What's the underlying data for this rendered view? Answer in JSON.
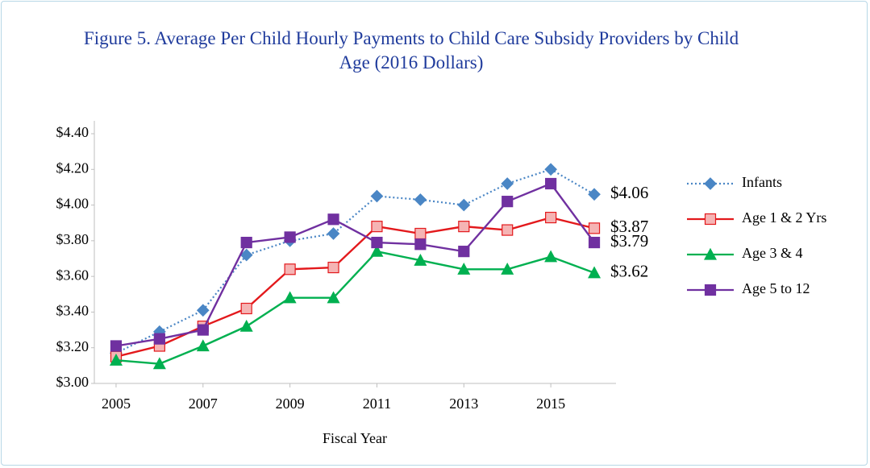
{
  "chart_data": {
    "type": "line",
    "title": "Figure 5. Average Per Child Hourly Payments to Child Care Subsidy Providers by Child Age (2016 Dollars)",
    "x_label": "Fiscal Year",
    "x": [
      2005,
      2006,
      2007,
      2008,
      2009,
      2010,
      2011,
      2012,
      2013,
      2014,
      2015,
      2016
    ],
    "xlim": [
      2004.5,
      2016.5
    ],
    "xticks": [
      2005,
      2007,
      2009,
      2011,
      2013,
      2015
    ],
    "ylim": [
      3.0,
      4.4
    ],
    "yticks": [
      {
        "value": 3.0,
        "label": "$3.00"
      },
      {
        "value": 3.2,
        "label": "$3.20"
      },
      {
        "value": 3.4,
        "label": "$3.40"
      },
      {
        "value": 3.6,
        "label": "$3.60"
      },
      {
        "value": 3.8,
        "label": "$3.80"
      },
      {
        "value": 4.0,
        "label": "$4.00"
      },
      {
        "value": 4.2,
        "label": "$4.20"
      },
      {
        "value": 4.4,
        "label": "$4.40"
      }
    ],
    "legend": "right",
    "series": [
      {
        "name": "Infants",
        "color": "#4a86c5",
        "line_style": "dotted",
        "marker": "diamond",
        "marker_fill": "#4a86c5",
        "values": [
          3.17,
          3.29,
          3.41,
          3.72,
          3.8,
          3.84,
          4.05,
          4.03,
          4.0,
          4.12,
          4.2,
          4.06
        ],
        "value_labels": [
          null,
          null,
          null,
          null,
          null,
          null,
          null,
          null,
          null,
          null,
          null,
          "$4.06"
        ]
      },
      {
        "name": "Age 1 & 2 Yrs",
        "color": "#e3191c",
        "line_style": "solid",
        "marker": "square",
        "marker_fill": "#f5b4b4",
        "values": [
          3.15,
          3.21,
          3.32,
          3.42,
          3.64,
          3.65,
          3.88,
          3.84,
          3.88,
          3.86,
          3.93,
          3.87
        ],
        "value_labels": [
          null,
          null,
          null,
          null,
          null,
          null,
          null,
          null,
          null,
          null,
          null,
          "$3.87"
        ]
      },
      {
        "name": "Age 3 & 4",
        "color": "#00b050",
        "line_style": "solid",
        "marker": "triangle",
        "marker_fill": "#00b050",
        "values": [
          3.13,
          3.11,
          3.21,
          3.32,
          3.48,
          3.48,
          3.74,
          3.69,
          3.64,
          3.64,
          3.71,
          3.62
        ],
        "value_labels": [
          null,
          null,
          null,
          null,
          null,
          null,
          null,
          null,
          null,
          null,
          null,
          "$3.62"
        ]
      },
      {
        "name": "Age 5 to 12",
        "color": "#7030a0",
        "line_style": "solid",
        "marker": "square",
        "marker_fill": "#7030a0",
        "values": [
          3.21,
          3.25,
          3.3,
          3.79,
          3.82,
          3.92,
          3.79,
          3.78,
          3.74,
          4.02,
          4.12,
          3.79
        ],
        "value_labels": [
          null,
          null,
          null,
          null,
          null,
          null,
          null,
          null,
          null,
          null,
          null,
          "$3.79"
        ]
      }
    ]
  }
}
